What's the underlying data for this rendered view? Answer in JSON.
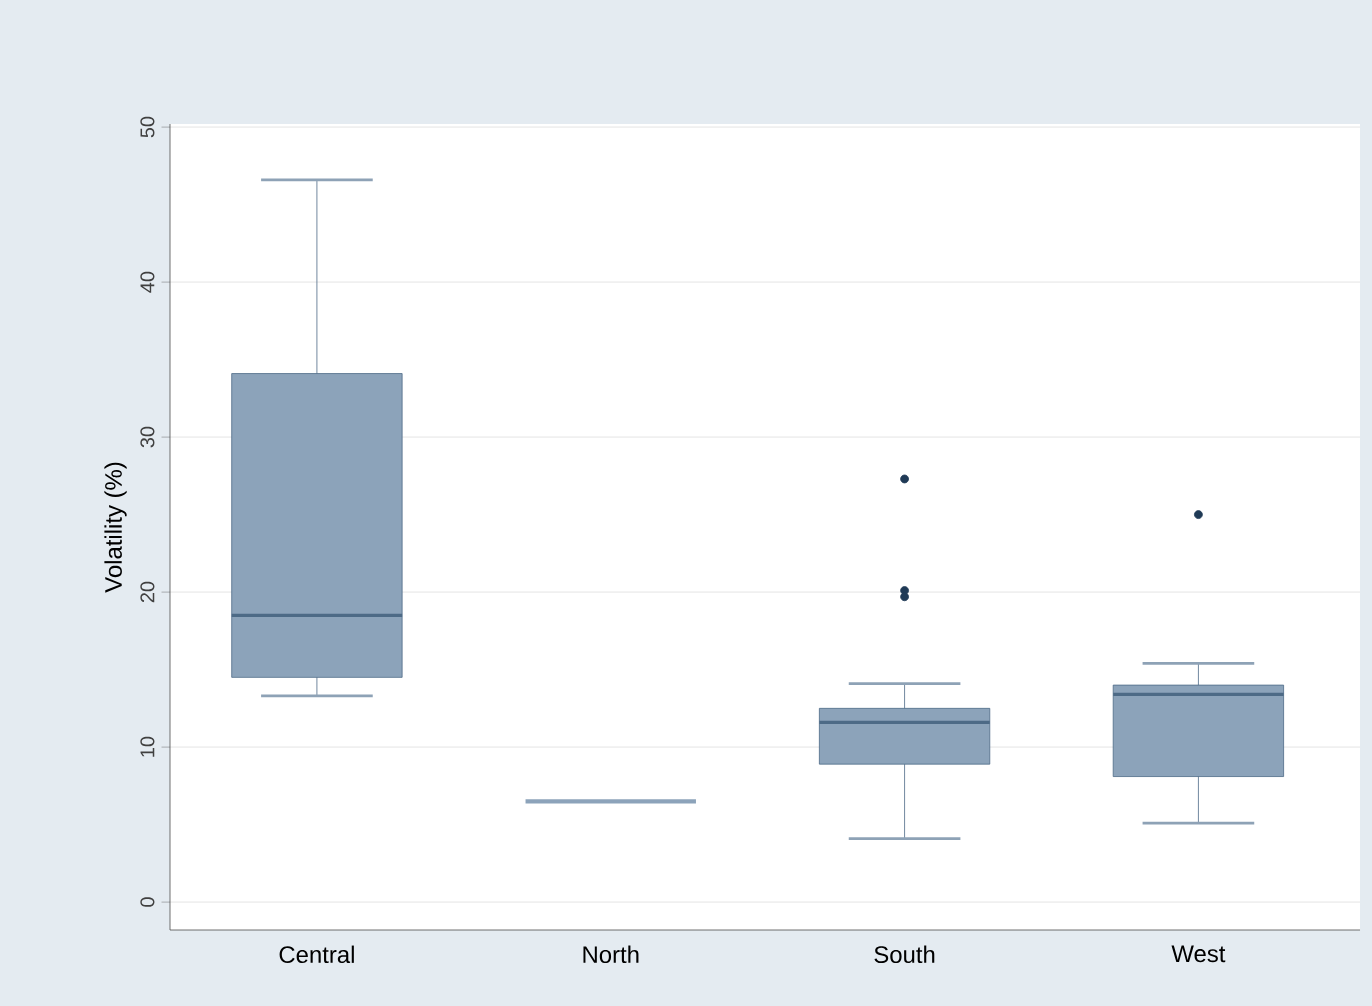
{
  "chart_data": {
    "type": "box",
    "ylabel": "Volatility (%)",
    "categories": [
      "Central",
      "North",
      "South",
      "West"
    ],
    "boxes": [
      {
        "low": 13.3,
        "q1": 14.5,
        "median": 18.5,
        "q3": 34.1,
        "high": 46.6
      },
      {
        "low": 6.5,
        "q1": 6.5,
        "median": 6.5,
        "q3": 6.5,
        "high": 6.5
      },
      {
        "low": 4.1,
        "q1": 8.9,
        "median": 11.6,
        "q3": 12.5,
        "high": 14.1,
        "outliers": [
          27.3,
          20.1,
          19.7
        ]
      },
      {
        "low": 5.1,
        "q1": 8.1,
        "median": 13.4,
        "q3": 14.0,
        "high": 15.4,
        "outliers": [
          25.0
        ]
      }
    ],
    "color": "#8ca3ba",
    "ylim": [
      -1.8,
      50.2
    ],
    "yticks": [
      0,
      10,
      20,
      30,
      40,
      50
    ],
    "grid": "y"
  }
}
